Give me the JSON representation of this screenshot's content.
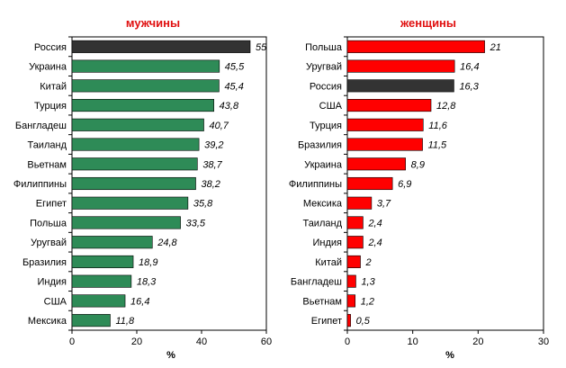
{
  "chart_data": [
    {
      "type": "bar",
      "orientation": "horizontal",
      "title": "мужчины",
      "xlabel": "%",
      "xlim": [
        0,
        60
      ],
      "xticks": [
        "0",
        "20",
        "40",
        "60"
      ],
      "categories": [
        "Россия",
        "Украина",
        "Китай",
        "Турция",
        "Бангладеш",
        "Таиланд",
        "Вьетнам",
        "Филиппины",
        "Египет",
        "Польша",
        "Уругвай",
        "Бразилия",
        "Индия",
        "США",
        "Мексика"
      ],
      "values": [
        55,
        45.5,
        45.4,
        43.8,
        40.7,
        39.2,
        38.7,
        38.2,
        35.8,
        33.5,
        24.8,
        18.9,
        18.3,
        16.4,
        11.8
      ],
      "value_labels": [
        "55",
        "45,5",
        "45,4",
        "43,8",
        "40,7",
        "39,2",
        "38,7",
        "38,2",
        "35,8",
        "33,5",
        "24,8",
        "18,9",
        "18,3",
        "16,4",
        "11,8"
      ],
      "bar_color": "#2e8b57",
      "highlight": {
        "category": "Россия",
        "color": "#333333"
      },
      "grid": false
    },
    {
      "type": "bar",
      "orientation": "horizontal",
      "title": "женщины",
      "xlabel": "%",
      "xlim": [
        0,
        30
      ],
      "xticks": [
        "0",
        "10",
        "20",
        "30"
      ],
      "categories": [
        "Польша",
        "Уругвай",
        "Россия",
        "США",
        "Турция",
        "Бразилия",
        "Украина",
        "Филиппины",
        "Мексика",
        "Таиланд",
        "Индия",
        "Китай",
        "Бангладеш",
        "Вьетнам",
        "Египет"
      ],
      "values": [
        21,
        16.4,
        16.3,
        12.8,
        11.6,
        11.5,
        8.9,
        6.9,
        3.7,
        2.4,
        2.4,
        2,
        1.3,
        1.2,
        0.5
      ],
      "value_labels": [
        "21",
        "16,4",
        "16,3",
        "12,8",
        "11,6",
        "11,5",
        "8,9",
        "6,9",
        "3,7",
        "2,4",
        "2,4",
        "2",
        "1,3",
        "1,2",
        "0,5"
      ],
      "bar_color": "#ff0000",
      "highlight": {
        "category": "Россия",
        "color": "#333333"
      },
      "grid": false
    }
  ]
}
